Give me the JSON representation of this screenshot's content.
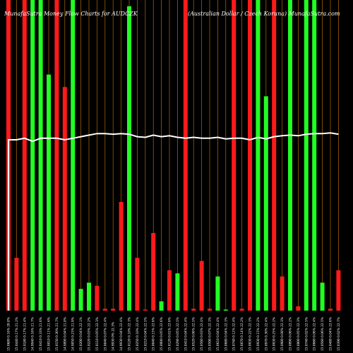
{
  "chart_data": {
    "type": "bar",
    "title": "MunafaSutra Money Flow Charts for AUDCZK",
    "subtitle": "(Australian Dollar / Czech Koruna) MunafaSutra.com",
    "xlabel": "",
    "ylabel": "",
    "ylim": [
      0,
      100
    ],
    "grid": true,
    "legend": "none",
    "colors": {
      "background": "#000000",
      "up": "#22ff22",
      "down": "#ff1a1a",
      "grid": "#b36b00",
      "line": "#ffffff"
    },
    "categories": [
      "15.0680 0.16% 20.8%",
      "15.0440 0.17% 21.2%",
      "15.0180 0.17% 21.4%",
      "14.9940 0.16% 21.7%",
      "15.0410 0.33% 21.6%",
      "15.0010 0.11% 21.6%",
      "15.0150 0.30% 21.7%",
      "14.9890 0.04% 21.8%",
      "14.9850 0.23% 21.9%",
      "15.0200 0.04% 22.1%",
      "15.0220 0.03% 22.2%",
      "15.0110 0.05% 22.3%",
      "15.0040 0.07% 22.4%",
      "14.9930 0% 22.3%",
      "14.9930 0.04% 22.4%",
      "15.0120 0.10% 22.3%",
      "15.0250 0.10% 22.4%",
      "15.0210 0.04% 22.5%",
      "15.0040 0.15% 22.6%",
      "15.0000 0.05% 22.6%",
      "15.0120 0.01% 22.6%",
      "15.0290 0.05% 22.5%",
      "15.0410 0.04% 22.4%",
      "15.0520 0.06% 22.5%",
      "15.0560 0.03% 22.4%",
      "15.0590 0.07% 22.3%",
      "15.0610 0.04% 22.4%",
      "15.0680 0.04% 22.3%",
      "15.0740 0.12% 22.4%",
      "15.0870 0.14% 22.2%",
      "15.0930 0.22% 22.3%",
      "15.0930 0.15% 22.2%",
      "15.0970 0.30% 22.4%",
      "15.0930 0.25% 22.2%",
      "15.0980 0.08% 22.3%",
      "15.0890 0.06% 22.2%",
      "15.0800 0.05% 22.3%",
      "15.0740 0.02% 22.5%",
      "15.0660 0.06% 22.4%",
      "15.0560 0.06% 22.5%",
      "15.0480 0.04% 22.6%",
      "15.0390 0.02% 22.7%"
    ],
    "series": [
      {
        "values": [
          100,
          17,
          100,
          100,
          100,
          76,
          100,
          72,
          100,
          7,
          9,
          8,
          0.6,
          0.6,
          35,
          98,
          17,
          0,
          25,
          3,
          13,
          12,
          100,
          0.6,
          16,
          0.6,
          11,
          0,
          100,
          0.6,
          100,
          100,
          69,
          100,
          11,
          100,
          1.4,
          100,
          100,
          9,
          0.6,
          13
        ],
        "colors": [
          "red",
          "red",
          "red",
          "green",
          "green",
          "green",
          "red",
          "red",
          "green",
          "green",
          "green",
          "red",
          "red",
          "red",
          "red",
          "green",
          "red",
          "red",
          "red",
          "green",
          "red",
          "green",
          "red",
          "red",
          "red",
          "red",
          "green",
          "green",
          "red",
          "red",
          "red",
          "green",
          "green",
          "red",
          "red",
          "green",
          "red",
          "green",
          "green",
          "green",
          "red",
          "red"
        ]
      },
      {
        "values": [
          55,
          55,
          55.5,
          54.5,
          55.5,
          55.5,
          55.5,
          55,
          55.5,
          56,
          56.5,
          57,
          57,
          56.8,
          57,
          56.8,
          56,
          55.8,
          56.5,
          56,
          56.3,
          55.8,
          55.5,
          55.8,
          55.5,
          55.5,
          55.8,
          55.3,
          55.5,
          55.5,
          55,
          55.8,
          55.3,
          56,
          56.3,
          56.5,
          56.3,
          56.8,
          57,
          57,
          57.2,
          56.8
        ]
      }
    ]
  }
}
